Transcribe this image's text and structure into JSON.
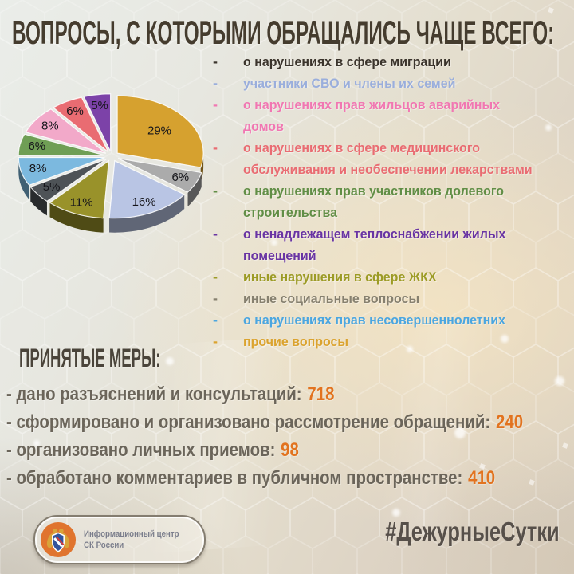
{
  "page": {
    "title": "ВОПРОСЫ, С КОТОРЫМИ ОБРАЩАЛИСЬ ЧАЩЕ ВСЕГО:"
  },
  "chart_data": {
    "type": "pie",
    "style": "3d-exploded",
    "unit": "%",
    "start_angle_deg": 0,
    "direction": "clockwise",
    "slices": [
      {
        "value": 29,
        "label": "29%",
        "color": "#D6A12F"
      },
      {
        "value": 6,
        "label": "6%",
        "color": "#ABABAB"
      },
      {
        "value": 16,
        "label": "16%",
        "color": "#B9C5E4"
      },
      {
        "value": 11,
        "label": "11%",
        "color": "#99922A"
      },
      {
        "value": 5,
        "label": "5%",
        "color": "#4E5357"
      },
      {
        "value": 8,
        "label": "8%",
        "color": "#7CB9DF"
      },
      {
        "value": 6,
        "label": "6%",
        "color": "#6F9E55"
      },
      {
        "value": 8,
        "label": "8%",
        "color": "#F2A9C9"
      },
      {
        "value": 6,
        "label": "6%",
        "color": "#E96C72"
      },
      {
        "value": 5,
        "label": "5%",
        "color": "#7C42A8"
      }
    ]
  },
  "legend": {
    "bullet": "-",
    "items": [
      {
        "label": "о нарушениях в сфере миграции",
        "color": "#3B342C",
        "lines": [
          "о нарушениях в сфере миграции"
        ]
      },
      {
        "label": "участники СВО и члены их семей",
        "color": "#9AAEDC",
        "lines": [
          "участники СВО и члены их семей"
        ]
      },
      {
        "label": "о нарушениях прав жильцов аварийных домов",
        "color": "#F177B2",
        "lines": [
          "о нарушениях прав жильцов аварийных",
          "домов"
        ]
      },
      {
        "label": "о нарушениях в сфере медицинского обслуживания и необеспечении лекарствами",
        "color": "#E96C72",
        "lines": [
          "о нарушениях в сфере медицинского",
          "обслуживания и необеспечении лекарствами"
        ]
      },
      {
        "label": "о нарушениях прав участников долевого строительства",
        "color": "#618E46",
        "lines": [
          "о нарушениях прав участников долевого",
          "строительства"
        ]
      },
      {
        "label": "о ненадлежащем теплоснабжении жилых помещений",
        "color": "#6934A3",
        "lines": [
          "о ненадлежащем теплоснабжении жилых",
          "помещений"
        ]
      },
      {
        "label": "иные нарушения в сфере ЖКХ",
        "color": "#9C9B25",
        "lines": [
          "иные нарушения в сфере ЖКХ"
        ]
      },
      {
        "label": "иные социальные вопросы",
        "color": "#86806F",
        "lines": [
          "иные социальные вопросы"
        ]
      },
      {
        "label": "о нарушениях прав несовершеннолетних",
        "color": "#4BA6E0",
        "lines": [
          "о нарушениях прав несовершеннолетних"
        ]
      },
      {
        "label": "прочие вопросы",
        "color": "#DBA32E",
        "lines": [
          "прочие вопросы"
        ]
      }
    ]
  },
  "measures": {
    "heading": "ПРИНЯТЫЕ МЕРЫ:",
    "items": [
      {
        "text": "- дано разъяснений и консультаций:",
        "value": "718"
      },
      {
        "text": "- сформировано и организовано рассмотрение обращений:",
        "value": "240"
      },
      {
        "text": "- организовано личных приемов:",
        "value": "98"
      },
      {
        "text": "- обработано комментариев в публичном пространстве:",
        "value": "410"
      }
    ]
  },
  "footer": {
    "logo_text_line1": "Информационный центр",
    "logo_text_line2": "СК России",
    "hashtag": "#ДежурныеСутки"
  },
  "colors": {
    "title_text": "#453C2E",
    "measures_heading": "#4A443A",
    "measures_text": "#6B655A",
    "accent_number": "#E2731F",
    "hashtag_text": "#57504A",
    "emblem_orange": "#E0742E"
  }
}
